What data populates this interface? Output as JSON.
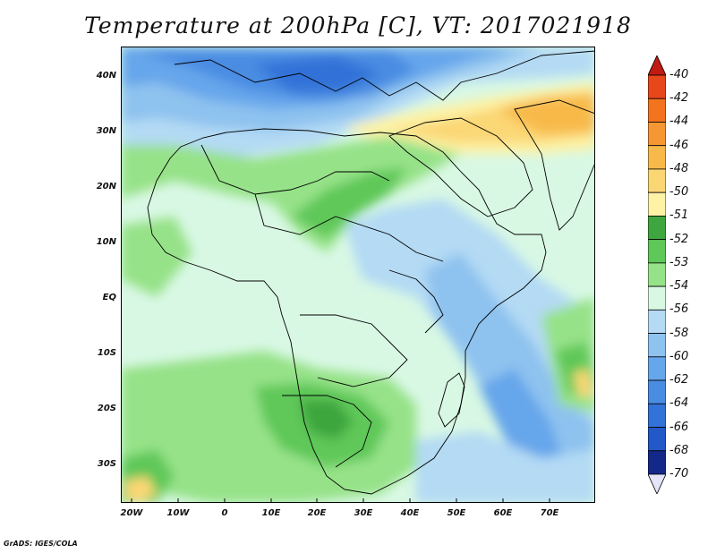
{
  "title": "Temperature at 200hPa [C], VT: 2017021918",
  "credit": "GrADS: IGES/COLA",
  "map": {
    "lat_labels": [
      "40N",
      "30N",
      "20N",
      "10N",
      "EQ",
      "10S",
      "20S",
      "30S"
    ],
    "lon_labels": [
      "20W",
      "10W",
      "0",
      "10E",
      "20E",
      "30E",
      "40E",
      "50E",
      "60E",
      "70E"
    ]
  },
  "colorbar": {
    "labels": [
      "-40",
      "-42",
      "-44",
      "-46",
      "-48",
      "-50",
      "-51",
      "-52",
      "-53",
      "-54",
      "-56",
      "-58",
      "-60",
      "-62",
      "-64",
      "-66",
      "-68",
      "-70"
    ],
    "colors": [
      "#c01a12",
      "#e8471c",
      "#f4731e",
      "#f79734",
      "#f8b94a",
      "#fbd774",
      "#fdf2a6",
      "#3ea63e",
      "#5ec858",
      "#96e288",
      "#d8f8e4",
      "#b4daf4",
      "#8ec2ef",
      "#66a6eb",
      "#4a8ce2",
      "#3372d8",
      "#2258c8",
      "#14288a",
      "#e4e4fa"
    ]
  }
}
